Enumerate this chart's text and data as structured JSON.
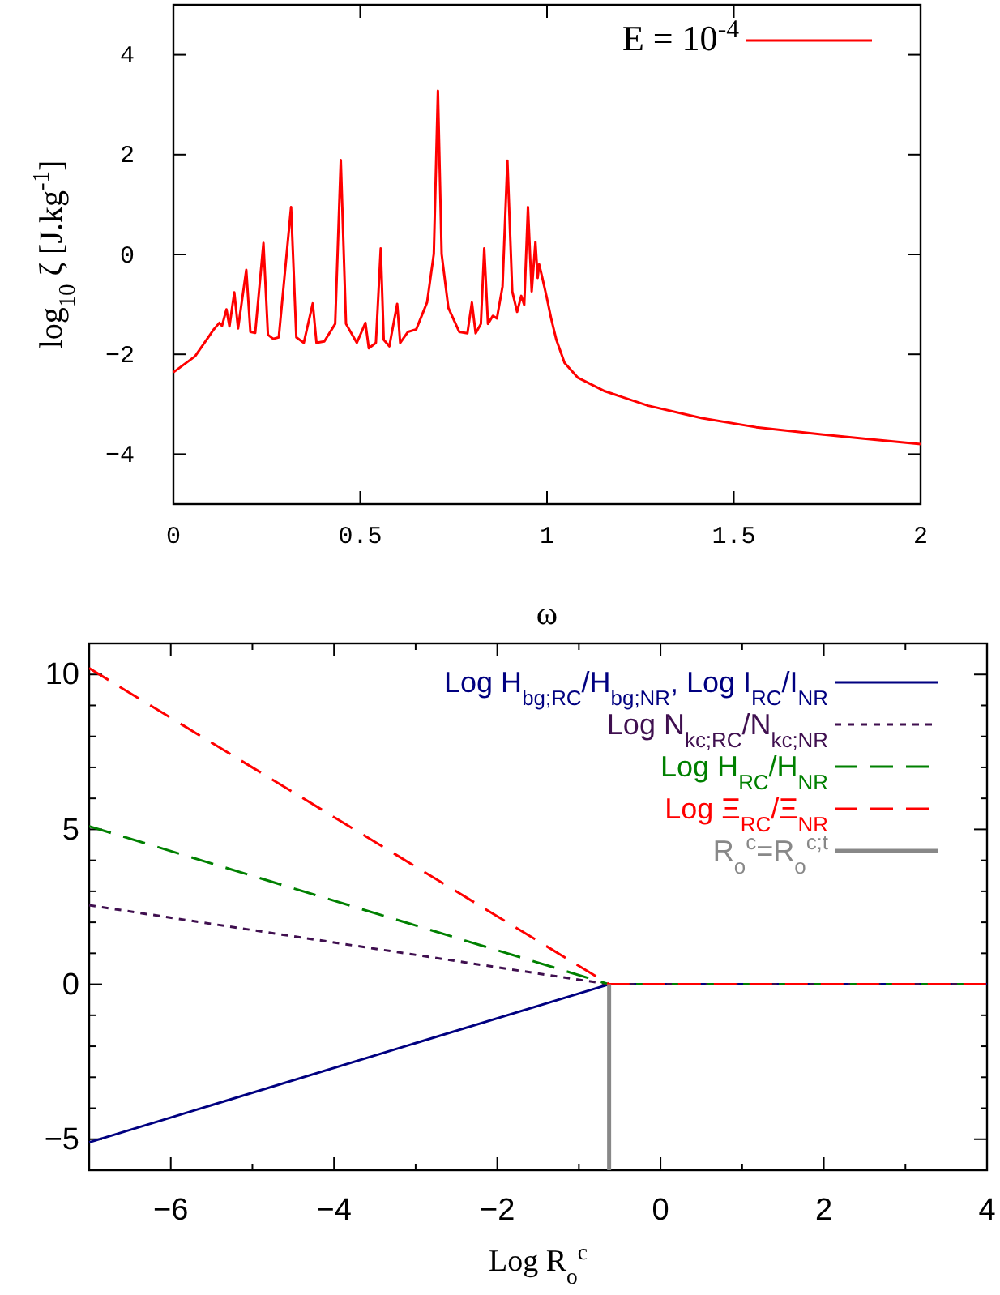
{
  "chart_data": [
    {
      "type": "line",
      "xlabel": "ω",
      "ylabel": "log$_{10}$ ζ [J.kg$^{-1}$]",
      "xlim": [
        0,
        2
      ],
      "ylim": [
        -5,
        5
      ],
      "xticks": [
        0,
        0.5,
        1,
        1.5,
        2
      ],
      "yticks": [
        -4,
        -2,
        0,
        2,
        4
      ],
      "legend": "top right",
      "grid": false,
      "x": [
        0,
        0.058,
        0.108,
        0.123,
        0.13,
        0.142,
        0.15,
        0.163,
        0.173,
        0.195,
        0.206,
        0.219,
        0.241,
        0.253,
        0.267,
        0.282,
        0.315,
        0.329,
        0.349,
        0.373,
        0.383,
        0.404,
        0.433,
        0.448,
        0.462,
        0.491,
        0.514,
        0.523,
        0.542,
        0.555,
        0.563,
        0.578,
        0.599,
        0.607,
        0.628,
        0.65,
        0.679,
        0.697,
        0.708,
        0.718,
        0.736,
        0.765,
        0.787,
        0.799,
        0.809,
        0.823,
        0.832,
        0.842,
        0.855,
        0.866,
        0.881,
        0.894,
        0.907,
        0.92,
        0.931,
        0.939,
        0.949,
        0.959,
        0.969,
        0.975,
        0.979,
        0.986,
        0.999,
        1.011,
        1.025,
        1.047,
        1.083,
        1.155,
        1.271,
        1.415,
        1.56,
        1.704,
        1.848,
        2.0
      ],
      "series": [
        {
          "name": "E = 10$^{-4}$",
          "color": "#ff0000",
          "line_style": "solid",
          "values": [
            -2.36,
            -2.04,
            -1.5,
            -1.37,
            -1.43,
            -1.1,
            -1.44,
            -0.76,
            -1.48,
            -0.31,
            -1.55,
            -1.57,
            0.23,
            -1.61,
            -1.69,
            -1.66,
            0.95,
            -1.66,
            -1.77,
            -0.98,
            -1.77,
            -1.74,
            -1.39,
            1.89,
            -1.39,
            -1.77,
            -1.37,
            -1.88,
            -1.77,
            0.12,
            -1.71,
            -1.84,
            -0.99,
            -1.77,
            -1.55,
            -1.5,
            -0.96,
            0.01,
            3.28,
            0.01,
            -1.07,
            -1.55,
            -1.58,
            -0.96,
            -1.58,
            -1.39,
            0.12,
            -1.39,
            -1.23,
            -1.28,
            -0.64,
            1.88,
            -0.74,
            -1.15,
            -0.83,
            -1.01,
            0.95,
            -0.74,
            0.25,
            -0.47,
            -0.2,
            -0.42,
            -0.85,
            -1.28,
            -1.71,
            -2.17,
            -2.47,
            -2.74,
            -3.03,
            -3.28,
            -3.46,
            -3.58,
            -3.69,
            -3.8
          ]
        }
      ]
    },
    {
      "type": "line",
      "xlabel": "Log R$_{o}$$^{c}$",
      "xlim": [
        -7,
        4
      ],
      "ylim": [
        -6,
        11
      ],
      "xticks": [
        {
          "value": -7,
          "label": null
        },
        -6,
        {
          "value": -5,
          "label": null
        },
        -4,
        {
          "value": -3,
          "label": null
        },
        -2,
        {
          "value": -1,
          "label": null
        },
        0,
        {
          "value": 1,
          "label": null
        },
        2,
        {
          "value": 3,
          "label": null
        },
        4
      ],
      "yticks": [
        {
          "value": -6,
          "label": null
        },
        -5,
        {
          "value": -4,
          "label": null
        },
        {
          "value": -3,
          "label": null
        },
        {
          "value": -2,
          "label": null
        },
        {
          "value": -1,
          "label": null
        },
        0,
        {
          "value": 1,
          "label": null
        },
        {
          "value": 2,
          "label": null
        },
        {
          "value": 3,
          "label": null
        },
        {
          "value": 4,
          "label": null
        },
        5,
        {
          "value": 6,
          "label": null
        },
        {
          "value": 7,
          "label": null
        },
        {
          "value": 8,
          "label": null
        },
        {
          "value": 9,
          "label": null
        },
        10,
        {
          "value": 11,
          "label": null
        }
      ],
      "legend": "top right",
      "grid": false,
      "x": [
        -7,
        -0.63,
        4
      ],
      "series": [
        {
          "name": "Log H$_{bg;RC}$/H$_{bg;NR}$, Log I$_{RC}$/I$_{NR}$",
          "color": "#000080",
          "line_style": "solid",
          "values": [
            -5.1,
            0,
            0
          ]
        },
        {
          "name": "Log N$_{kc;RC}$/N$_{kc;NR}$",
          "color": "#3f0f4f",
          "line_style": "dotted",
          "values": [
            2.55,
            0,
            0
          ]
        },
        {
          "name": "Log H$_{RC}$/H$_{NR}$",
          "color": "#008000",
          "line_style": "dashed",
          "values": [
            5.1,
            0,
            0
          ]
        },
        {
          "name": "Log Ξ$_{RC}$/Ξ$_{NR}$",
          "color": "#ff0000",
          "line_style": "dashed",
          "values": [
            10.2,
            0,
            0
          ]
        },
        {
          "name": "R$_{o}$$^{c}$=R$_{o}$$^{c;t}$",
          "color": "#888888",
          "line_style": "solid",
          "x": [
            -0.63,
            -0.63
          ],
          "values": [
            -6,
            0
          ]
        }
      ]
    }
  ]
}
